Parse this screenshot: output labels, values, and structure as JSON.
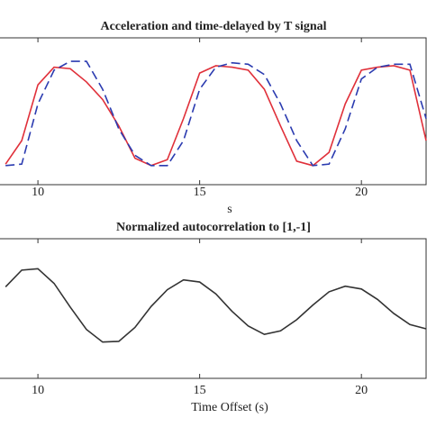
{
  "chart_data": [
    {
      "type": "line",
      "title": "Acceleration and time-delayed by T signal",
      "x_label": "s",
      "x": [
        9.0,
        9.5,
        10.0,
        10.5,
        11.0,
        11.5,
        12.0,
        12.5,
        13.0,
        13.5,
        14.0,
        14.5,
        15.0,
        15.5,
        16.0,
        16.5,
        17.0,
        17.5,
        18.0,
        18.5,
        19.0,
        19.5,
        20.0,
        20.5,
        21.0,
        21.5,
        22.0
      ],
      "series": [
        {
          "color": "#e0303a",
          "style": "solid",
          "values": [
            0.14,
            0.3,
            0.68,
            0.8,
            0.79,
            0.7,
            0.58,
            0.4,
            0.18,
            0.13,
            0.17,
            0.45,
            0.76,
            0.81,
            0.8,
            0.78,
            0.65,
            0.4,
            0.16,
            0.13,
            0.22,
            0.55,
            0.78,
            0.8,
            0.81,
            0.78,
            0.3
          ]
        },
        {
          "color": "#2b3bb0",
          "style": "dashed",
          "values": [
            0.13,
            0.14,
            0.55,
            0.78,
            0.84,
            0.84,
            0.65,
            0.38,
            0.2,
            0.13,
            0.13,
            0.3,
            0.65,
            0.8,
            0.83,
            0.82,
            0.75,
            0.55,
            0.3,
            0.13,
            0.14,
            0.38,
            0.72,
            0.8,
            0.82,
            0.82,
            0.45
          ]
        }
      ],
      "xlim": [
        8.8,
        22.0
      ],
      "xticks": [
        10,
        15,
        20
      ],
      "ylim": [
        0,
        1
      ]
    },
    {
      "type": "line",
      "title": "Normalized autocorrelation to [1,-1]",
      "x_label": "Time Offset (s)",
      "x": [
        9.0,
        9.5,
        10.0,
        10.5,
        11.0,
        11.5,
        12.0,
        12.5,
        13.0,
        13.5,
        14.0,
        14.5,
        15.0,
        15.5,
        16.0,
        16.5,
        17.0,
        17.5,
        18.0,
        18.5,
        19.0,
        19.5,
        20.0,
        20.5,
        21.0,
        21.5,
        22.0
      ],
      "series": [
        {
          "color": "#333333",
          "style": "solid",
          "values": [
            0.31,
            0.55,
            0.57,
            0.36,
            0.02,
            -0.3,
            -0.48,
            -0.47,
            -0.27,
            0.03,
            0.27,
            0.41,
            0.38,
            0.21,
            -0.04,
            -0.25,
            -0.37,
            -0.32,
            -0.16,
            0.05,
            0.24,
            0.32,
            0.28,
            0.13,
            -0.07,
            -0.23,
            -0.29
          ]
        }
      ],
      "xlim": [
        8.8,
        22.0
      ],
      "xticks": [
        10,
        15,
        20
      ],
      "ylim": [
        -1,
        1
      ]
    }
  ]
}
